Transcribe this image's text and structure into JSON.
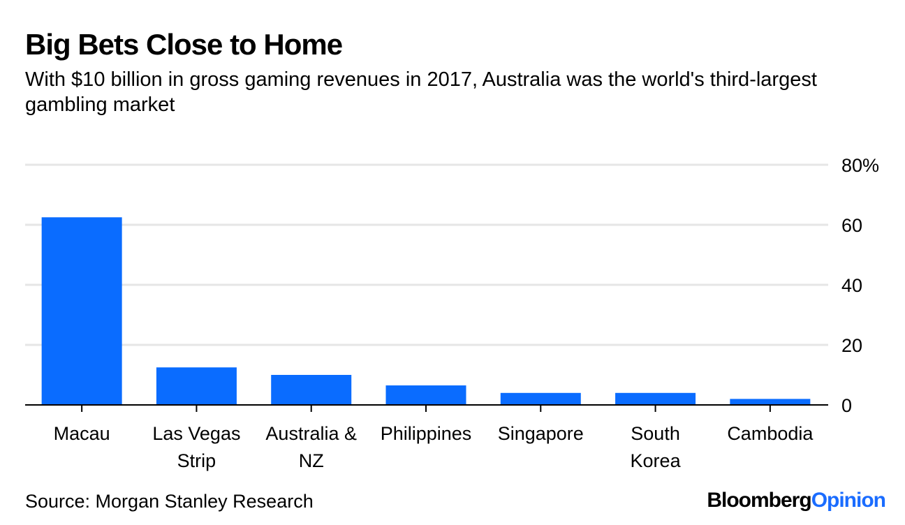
{
  "header": {
    "title": "Big Bets Close to Home",
    "subtitle": "With $10 billion in gross gaming revenues in 2017, Australia was the world's third-largest gambling market"
  },
  "footer": {
    "source": "Source: Morgan Stanley Research",
    "brand_part1": "Bloomberg",
    "brand_part2": "Opinion"
  },
  "colors": {
    "bar": "#0a6cff",
    "grid": "#e6e6e6",
    "axis": "#000000",
    "brand_accent": "#1a6cff"
  },
  "chart_data": {
    "type": "bar",
    "title": "Big Bets Close to Home",
    "xlabel": "",
    "ylabel": "",
    "categories": [
      [
        "Macau"
      ],
      [
        "Las Vegas",
        "Strip"
      ],
      [
        "Australia &",
        "NZ"
      ],
      [
        "Philippines"
      ],
      [
        "Singapore"
      ],
      [
        "South",
        "Korea"
      ],
      [
        "Cambodia"
      ]
    ],
    "values": [
      62.5,
      12.5,
      10,
      6.5,
      4,
      4,
      2
    ],
    "ylim": [
      0,
      80
    ],
    "yticks": [
      0,
      20,
      40,
      60,
      80
    ],
    "ytick_labels": [
      "0",
      "20",
      "40",
      "60",
      "80%"
    ],
    "y_axis_side": "right",
    "grid": true
  }
}
